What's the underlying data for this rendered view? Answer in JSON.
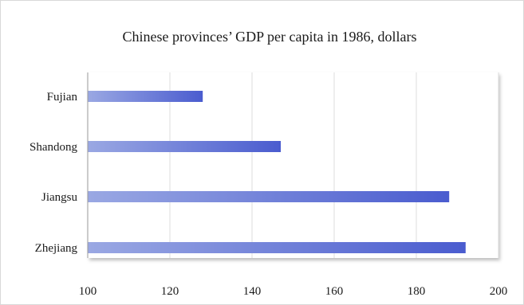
{
  "chart_data": {
    "type": "bar",
    "orientation": "horizontal",
    "title": "Chinese provinces’ GDP per capita in 1986, dollars",
    "categories": [
      "Fujian",
      "Shandong",
      "Jiangsu",
      "Zhejiang"
    ],
    "values": [
      128,
      147,
      188,
      192
    ],
    "xlabel": "",
    "ylabel": "",
    "xlim": [
      100,
      200
    ],
    "xticks": [
      100,
      120,
      140,
      160,
      180,
      200
    ],
    "grid": true,
    "legend": "none",
    "colors": {
      "bar_start": "#9aa8e3",
      "bar_end": "#4a5ccf"
    }
  }
}
